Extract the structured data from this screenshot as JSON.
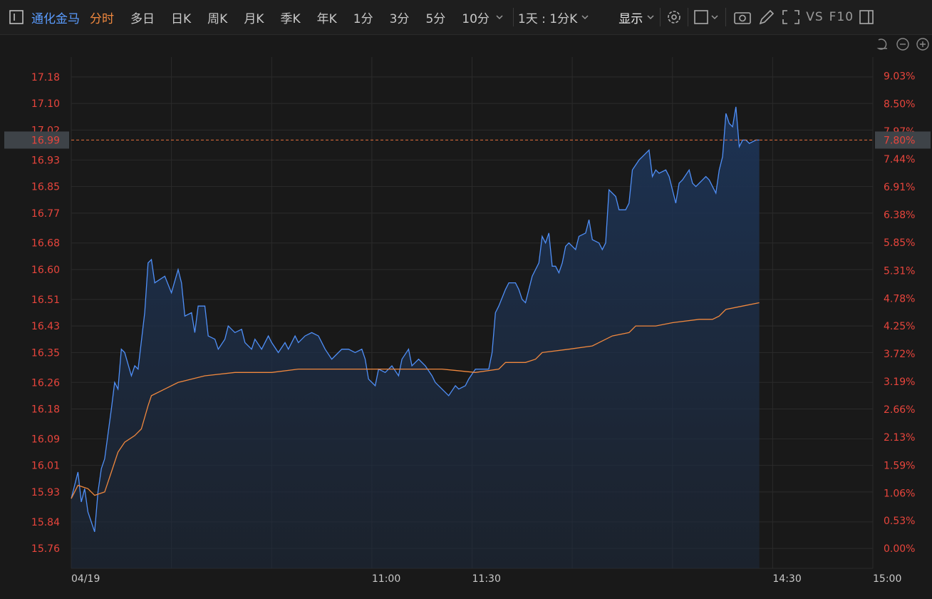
{
  "toolbar": {
    "stock_name": "通化金马",
    "tabs": [
      "分时",
      "多日",
      "日K",
      "周K",
      "月K",
      "季K",
      "年K",
      "1分",
      "3分",
      "5分",
      "10分"
    ],
    "period": "1天 : 1分K",
    "display": "显示",
    "vs": "VS",
    "f10": "F10"
  },
  "chart_data": {
    "type": "line",
    "grid": true,
    "fill": true,
    "xlim": [
      0,
      240
    ],
    "xticks": [
      {
        "value": 0,
        "label": "04/19"
      },
      {
        "value": 30,
        "label": null
      },
      {
        "value": 60,
        "label": null
      },
      {
        "value": 90,
        "label": "11:00"
      },
      {
        "value": 120,
        "label": "11:30"
      },
      {
        "value": 150,
        "label": null
      },
      {
        "value": 180,
        "label": null
      },
      {
        "value": 210,
        "label": "14:30"
      },
      {
        "value": 240,
        "label": "15:00"
      }
    ],
    "ylim": [
      15.7,
      17.24
    ],
    "yticks": [
      15.76,
      15.84,
      15.93,
      16.01,
      16.09,
      16.18,
      16.26,
      16.35,
      16.43,
      16.51,
      {
        "value": 16.6,
        "label": "16.60"
      },
      16.68,
      16.77,
      16.85,
      16.93,
      17.02,
      {
        "value": 17.1,
        "label": "17.10"
      },
      17.18
    ],
    "y2lim": [
      -0.38,
      9.39
    ],
    "y2ticks": [
      {
        "value": 0,
        "label": "0.00%"
      },
      {
        "value": 0.53,
        "label": "0.53%"
      },
      {
        "value": 1.06,
        "label": "1.06%"
      },
      {
        "value": 1.59,
        "label": "1.59%"
      },
      {
        "value": 2.13,
        "label": "2.13%"
      },
      {
        "value": 2.66,
        "label": "2.66%"
      },
      {
        "value": 3.19,
        "label": "3.19%"
      },
      {
        "value": 3.72,
        "label": "3.72%"
      },
      {
        "value": 4.25,
        "label": "4.25%"
      },
      {
        "value": 4.78,
        "label": "4.78%"
      },
      {
        "value": 5.31,
        "label": "5.31%"
      },
      {
        "value": 5.85,
        "label": "5.85%"
      },
      {
        "value": 6.38,
        "label": "6.38%"
      },
      {
        "value": 6.91,
        "label": "6.91%"
      },
      {
        "value": 7.44,
        "label": "7.44%"
      },
      {
        "value": 7.97,
        "label": "7.97%"
      },
      {
        "value": 8.5,
        "label": "8.50%"
      },
      {
        "value": 9.03,
        "label": "9.03%"
      }
    ],
    "last_price": 16.99,
    "last_change": {
      "value": 7.8,
      "label": "7.80%"
    },
    "series": [
      {
        "color": "#4f8ff7",
        "x": [
          0,
          2,
          3,
          4,
          5,
          7,
          8,
          9,
          10,
          12,
          13,
          14,
          15,
          16,
          18,
          19,
          20,
          22,
          23,
          24,
          25,
          28,
          30,
          32,
          33,
          34,
          36,
          37,
          38,
          40,
          41,
          43,
          44,
          46,
          47,
          49,
          51,
          52,
          54,
          55,
          57,
          59,
          60,
          62,
          64,
          65,
          67,
          68,
          70,
          72,
          74,
          76,
          78,
          79,
          81,
          83,
          85,
          87,
          88,
          89,
          91,
          92,
          94,
          96,
          98,
          99,
          101,
          102,
          104,
          106,
          108,
          109,
          111,
          113,
          115,
          116,
          118,
          119,
          121,
          123,
          125,
          126,
          127,
          128,
          130,
          131,
          133,
          134,
          135,
          136,
          138,
          139,
          140,
          141,
          142,
          143,
          144,
          145,
          146,
          147,
          148,
          149,
          151,
          152,
          154,
          155,
          156,
          158,
          159,
          160,
          161,
          163,
          164,
          166,
          167,
          168,
          170,
          171,
          173,
          174,
          175,
          176,
          178,
          179,
          181,
          182,
          183,
          185,
          186,
          187,
          189,
          190,
          191,
          193,
          194,
          195,
          196,
          197,
          198,
          199,
          200,
          201,
          202,
          203,
          205,
          206
        ],
        "values": [
          15.91,
          15.99,
          15.9,
          15.94,
          15.87,
          15.81,
          15.93,
          16.0,
          16.03,
          16.18,
          16.26,
          16.24,
          16.36,
          16.35,
          16.28,
          16.31,
          16.3,
          16.47,
          16.62,
          16.63,
          16.56,
          16.58,
          16.53,
          16.6,
          16.56,
          16.46,
          16.47,
          16.41,
          16.49,
          16.49,
          16.4,
          16.39,
          16.36,
          16.39,
          16.43,
          16.41,
          16.42,
          16.38,
          16.36,
          16.39,
          16.36,
          16.4,
          16.38,
          16.35,
          16.38,
          16.36,
          16.4,
          16.38,
          16.4,
          16.41,
          16.4,
          16.36,
          16.33,
          16.34,
          16.36,
          16.36,
          16.35,
          16.36,
          16.33,
          16.27,
          16.25,
          16.3,
          16.29,
          16.31,
          16.28,
          16.33,
          16.36,
          16.31,
          16.33,
          16.31,
          16.28,
          16.26,
          16.24,
          16.22,
          16.25,
          16.24,
          16.25,
          16.27,
          16.3,
          16.3,
          16.3,
          16.35,
          16.47,
          16.49,
          16.54,
          16.56,
          16.56,
          16.54,
          16.51,
          16.5,
          16.58,
          16.6,
          16.62,
          16.7,
          16.68,
          16.71,
          16.61,
          16.61,
          16.59,
          16.62,
          16.67,
          16.68,
          16.66,
          16.7,
          16.71,
          16.75,
          16.69,
          16.68,
          16.66,
          16.68,
          16.84,
          16.82,
          16.78,
          16.78,
          16.8,
          16.9,
          16.93,
          16.94,
          16.96,
          16.88,
          16.9,
          16.89,
          16.9,
          16.88,
          16.8,
          16.86,
          16.87,
          16.9,
          16.86,
          16.85,
          16.87,
          16.88,
          16.87,
          16.83,
          16.9,
          16.94,
          17.07,
          17.04,
          17.03,
          17.09,
          16.97,
          16.99,
          16.99,
          16.98,
          16.99,
          16.99
        ]
      },
      {
        "color": "#f0883e",
        "x": [
          0,
          2,
          5,
          7,
          10,
          12,
          14,
          16,
          19,
          21,
          23,
          24,
          28,
          32,
          36,
          40,
          49,
          60,
          68,
          81,
          98,
          111,
          121,
          128,
          130,
          136,
          139,
          141,
          149,
          156,
          158,
          162,
          167,
          169,
          175,
          180,
          188,
          192,
          194,
          196,
          201,
          206
        ],
        "values": [
          15.91,
          15.95,
          15.94,
          15.92,
          15.93,
          15.99,
          16.05,
          16.08,
          16.1,
          16.12,
          16.19,
          16.22,
          16.24,
          16.26,
          16.27,
          16.28,
          16.29,
          16.29,
          16.3,
          16.3,
          16.3,
          16.3,
          16.29,
          16.3,
          16.32,
          16.32,
          16.33,
          16.35,
          16.36,
          16.37,
          16.38,
          16.4,
          16.41,
          16.43,
          16.43,
          16.44,
          16.45,
          16.45,
          16.46,
          16.48,
          16.49,
          16.5
        ]
      }
    ]
  }
}
